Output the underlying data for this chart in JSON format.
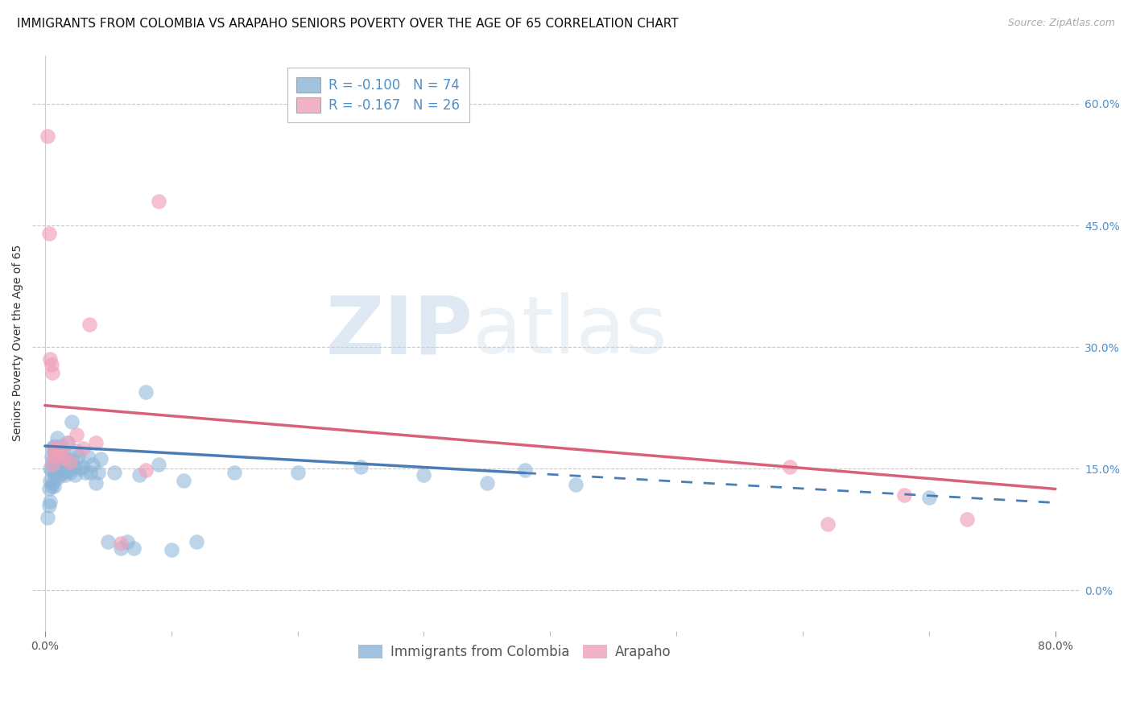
{
  "title": "IMMIGRANTS FROM COLOMBIA VS ARAPAHO SENIORS POVERTY OVER THE AGE OF 65 CORRELATION CHART",
  "source": "Source: ZipAtlas.com",
  "ylabel": "Seniors Poverty Over the Age of 65",
  "right_yticks": [
    0.0,
    0.15,
    0.3,
    0.45,
    0.6
  ],
  "right_yticklabels": [
    "0.0%",
    "15.0%",
    "30.0%",
    "45.0%",
    "60.0%"
  ],
  "xticks": [
    0.0,
    0.8
  ],
  "xticklabels": [
    "0.0%",
    "80.0%"
  ],
  "xlim": [
    -0.01,
    0.82
  ],
  "ylim": [
    -0.05,
    0.66
  ],
  "watermark_zip": "ZIP",
  "watermark_atlas": "atlas",
  "legend_entries": [
    {
      "label_r": "R = ",
      "r_val": "-0.100",
      "label_n": "  N = ",
      "n_val": "74",
      "color": "#a8c8e8"
    },
    {
      "label_r": "R = ",
      "r_val": "-0.167",
      "label_n": "  N = ",
      "n_val": "26",
      "color": "#f0a0b8"
    }
  ],
  "blue_scatter_x": [
    0.002,
    0.003,
    0.003,
    0.004,
    0.004,
    0.004,
    0.005,
    0.005,
    0.005,
    0.006,
    0.006,
    0.006,
    0.007,
    0.007,
    0.007,
    0.008,
    0.008,
    0.008,
    0.009,
    0.009,
    0.01,
    0.01,
    0.01,
    0.011,
    0.011,
    0.012,
    0.012,
    0.013,
    0.013,
    0.014,
    0.014,
    0.015,
    0.015,
    0.016,
    0.016,
    0.017,
    0.018,
    0.018,
    0.019,
    0.02,
    0.021,
    0.022,
    0.023,
    0.024,
    0.025,
    0.026,
    0.028,
    0.03,
    0.032,
    0.034,
    0.036,
    0.038,
    0.04,
    0.042,
    0.044,
    0.05,
    0.055,
    0.06,
    0.065,
    0.07,
    0.075,
    0.08,
    0.09,
    0.1,
    0.11,
    0.12,
    0.15,
    0.2,
    0.25,
    0.3,
    0.35,
    0.38,
    0.42,
    0.7
  ],
  "blue_scatter_y": [
    0.09,
    0.105,
    0.125,
    0.11,
    0.135,
    0.15,
    0.128,
    0.148,
    0.165,
    0.132,
    0.158,
    0.175,
    0.128,
    0.155,
    0.178,
    0.142,
    0.162,
    0.148,
    0.168,
    0.155,
    0.138,
    0.158,
    0.188,
    0.148,
    0.172,
    0.142,
    0.162,
    0.152,
    0.178,
    0.145,
    0.165,
    0.15,
    0.17,
    0.142,
    0.162,
    0.152,
    0.158,
    0.182,
    0.148,
    0.145,
    0.208,
    0.16,
    0.152,
    0.142,
    0.172,
    0.165,
    0.15,
    0.152,
    0.145,
    0.165,
    0.145,
    0.155,
    0.132,
    0.145,
    0.162,
    0.06,
    0.145,
    0.052,
    0.06,
    0.052,
    0.142,
    0.245,
    0.155,
    0.05,
    0.135,
    0.06,
    0.145,
    0.145,
    0.152,
    0.142,
    0.132,
    0.148,
    0.13,
    0.115
  ],
  "pink_scatter_x": [
    0.002,
    0.003,
    0.004,
    0.005,
    0.006,
    0.006,
    0.007,
    0.008,
    0.009,
    0.01,
    0.011,
    0.012,
    0.015,
    0.018,
    0.02,
    0.025,
    0.03,
    0.035,
    0.04,
    0.06,
    0.08,
    0.09,
    0.59,
    0.62,
    0.68,
    0.73
  ],
  "pink_scatter_y": [
    0.56,
    0.44,
    0.285,
    0.278,
    0.268,
    0.155,
    0.165,
    0.175,
    0.175,
    0.172,
    0.168,
    0.172,
    0.163,
    0.182,
    0.158,
    0.192,
    0.175,
    0.328,
    0.182,
    0.058,
    0.148,
    0.48,
    0.152,
    0.082,
    0.118,
    0.088
  ],
  "blue_trend_y_start": 0.178,
  "blue_trend_y_solid_end_x": 0.38,
  "blue_trend_y_end": 0.108,
  "pink_trend_y_start": 0.228,
  "pink_trend_y_end": 0.125,
  "blue_color": "#4a7db5",
  "pink_color": "#d9607a",
  "blue_scatter_color": "#8ab4d8",
  "pink_scatter_color": "#f0a0b8",
  "grid_color": "#c8c8c8",
  "right_tick_color": "#5090c8",
  "background_color": "#ffffff",
  "title_fontsize": 11,
  "axis_label_fontsize": 10,
  "tick_fontsize": 10,
  "legend_fontsize": 12
}
